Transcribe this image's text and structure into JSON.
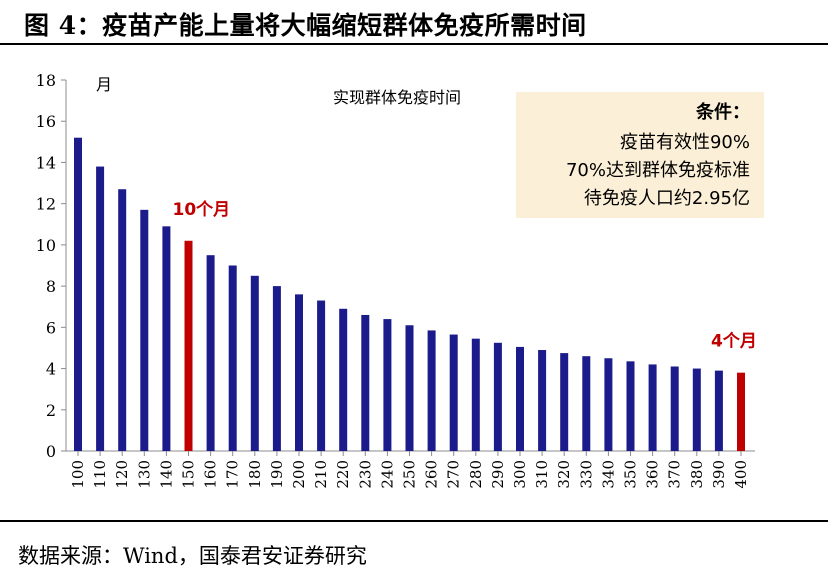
{
  "figure": {
    "title": "图 4：疫苗产能上量将大幅缩短群体免疫所需时间",
    "source": "数据来源：Wind，国泰君安证券研究"
  },
  "note": {
    "heading": "条件：",
    "lines": [
      "疫苗有效性90%",
      "70%达到群体免疫标准",
      "待免疫人口约2.95亿"
    ]
  },
  "chart_data": {
    "type": "bar",
    "title": "实现群体免疫时间",
    "ylabel": "月",
    "xlabel": "",
    "ylim": [
      0,
      18
    ],
    "yticks": [
      0,
      2,
      4,
      6,
      8,
      10,
      12,
      14,
      16,
      18
    ],
    "categories": [
      "100",
      "110",
      "120",
      "130",
      "140",
      "150",
      "160",
      "170",
      "180",
      "190",
      "200",
      "210",
      "220",
      "230",
      "240",
      "250",
      "260",
      "270",
      "280",
      "290",
      "300",
      "310",
      "320",
      "330",
      "340",
      "350",
      "360",
      "370",
      "380",
      "390",
      "400"
    ],
    "values": [
      15.2,
      13.8,
      12.7,
      11.7,
      10.9,
      10.2,
      9.5,
      9.0,
      8.5,
      8.0,
      7.6,
      7.3,
      6.9,
      6.6,
      6.4,
      6.1,
      5.85,
      5.65,
      5.45,
      5.25,
      5.05,
      4.9,
      4.75,
      4.6,
      4.5,
      4.35,
      4.2,
      4.1,
      4.0,
      3.9,
      3.8
    ],
    "colors": {
      "default": "#1b1b8c",
      "highlight": "#c00000"
    },
    "highlights": [
      {
        "category": "150",
        "label": "10个月"
      },
      {
        "category": "400",
        "label": "4个月"
      }
    ],
    "grid": false,
    "legend": "none"
  }
}
